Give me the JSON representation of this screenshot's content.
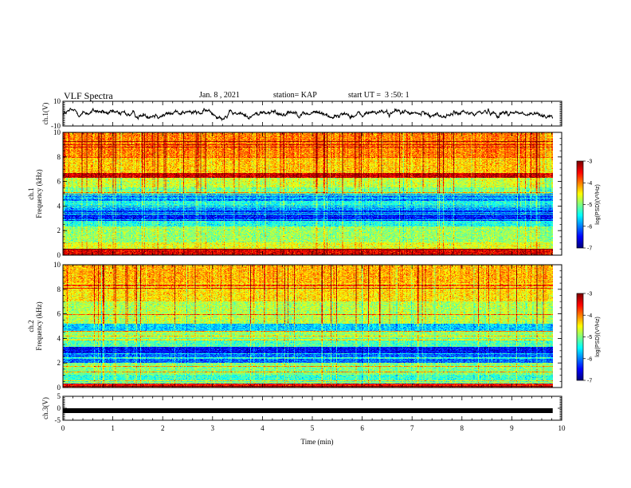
{
  "header": {
    "title": "VLF Spectra",
    "date": "Jan. 8 , 2021",
    "station": "station= KAP",
    "start": "start UT =  3 :50: 1"
  },
  "chart_data": [
    {
      "type": "line",
      "panel": "ch1-waveform",
      "ylabel": "ch.1(V)",
      "ylim": [
        -10,
        10
      ],
      "yticks": [
        10,
        -10
      ],
      "xlim": [
        0,
        10
      ],
      "note_series": "noisy signal fluctuating roughly between -5 and 7 V, data ends near 9.8 min"
    },
    {
      "type": "heatmap",
      "panel": "ch1-spectrogram",
      "ylabel": "ch.1\nFrequency (kHz)",
      "ylim": [
        0,
        10
      ],
      "yticks": [
        0,
        2,
        4,
        6,
        8,
        10
      ],
      "xlim": [
        0,
        10
      ],
      "colorbar": {
        "label": "log(PSD)(V²/Hz)",
        "range": [
          -7,
          -3
        ],
        "ticks": [
          -3,
          -4,
          -5,
          -6,
          -7
        ]
      },
      "bands": [
        {
          "f_kHz": [
            0.0,
            0.5
          ],
          "level": -3.4
        },
        {
          "f_kHz": [
            0.5,
            1.0
          ],
          "level": -4.6
        },
        {
          "f_kHz": [
            1.0,
            2.3
          ],
          "level": -4.9
        },
        {
          "f_kHz": [
            2.3,
            2.8
          ],
          "level": -5.4
        },
        {
          "f_kHz": [
            2.8,
            3.6
          ],
          "level": -6.4
        },
        {
          "f_kHz": [
            3.6,
            4.0
          ],
          "level": -5.9
        },
        {
          "f_kHz": [
            4.0,
            4.4
          ],
          "level": -5.4
        },
        {
          "f_kHz": [
            4.4,
            5.0
          ],
          "level": -6.0
        },
        {
          "f_kHz": [
            5.0,
            5.5
          ],
          "level": -5.0
        },
        {
          "f_kHz": [
            5.5,
            6.3
          ],
          "level": -4.7
        },
        {
          "f_kHz": [
            6.3,
            6.7
          ],
          "level": -3.3
        },
        {
          "f_kHz": [
            6.7,
            8.0
          ],
          "level": -4.3
        },
        {
          "f_kHz": [
            8.0,
            10.0
          ],
          "level": -4.0
        }
      ]
    },
    {
      "type": "heatmap",
      "panel": "ch2-spectrogram",
      "ylabel": "ch.2\nFrequency (kHz)",
      "ylim": [
        0,
        10
      ],
      "yticks": [
        0,
        2,
        4,
        6,
        8,
        10
      ],
      "xlim": [
        0,
        10
      ],
      "colorbar": {
        "label": "log(PSD)(V²/Hz)",
        "range": [
          -7,
          -3
        ],
        "ticks": [
          -3,
          -4,
          -5,
          -6,
          -7
        ]
      },
      "bands": [
        {
          "f_kHz": [
            0.0,
            0.3
          ],
          "level": -3.5
        },
        {
          "f_kHz": [
            0.3,
            1.0
          ],
          "level": -5.3
        },
        {
          "f_kHz": [
            1.0,
            2.0
          ],
          "level": -5.0
        },
        {
          "f_kHz": [
            2.0,
            2.7
          ],
          "level": -6.1
        },
        {
          "f_kHz": [
            2.7,
            3.3
          ],
          "level": -6.5
        },
        {
          "f_kHz": [
            3.3,
            4.0
          ],
          "level": -5.2
        },
        {
          "f_kHz": [
            4.0,
            4.6
          ],
          "level": -4.9
        },
        {
          "f_kHz": [
            4.6,
            5.2
          ],
          "level": -5.7
        },
        {
          "f_kHz": [
            5.2,
            7.0
          ],
          "level": -4.8
        },
        {
          "f_kHz": [
            7.0,
            8.5
          ],
          "level": -4.4
        },
        {
          "f_kHz": [
            8.5,
            10.0
          ],
          "level": -4.2
        }
      ]
    },
    {
      "type": "line",
      "panel": "ch3-waveform",
      "ylabel": "ch.3(V)",
      "ylim": [
        -5,
        5
      ],
      "yticks": [
        5,
        0,
        -5
      ],
      "xlim": [
        0,
        10
      ],
      "constant_value_V": -1.0
    }
  ],
  "xaxis": {
    "label": "Time (min)",
    "ticks": [
      "0",
      "1",
      "2",
      "3",
      "4",
      "5",
      "6",
      "7",
      "8",
      "9",
      "10"
    ],
    "range": [
      0,
      10
    ]
  }
}
